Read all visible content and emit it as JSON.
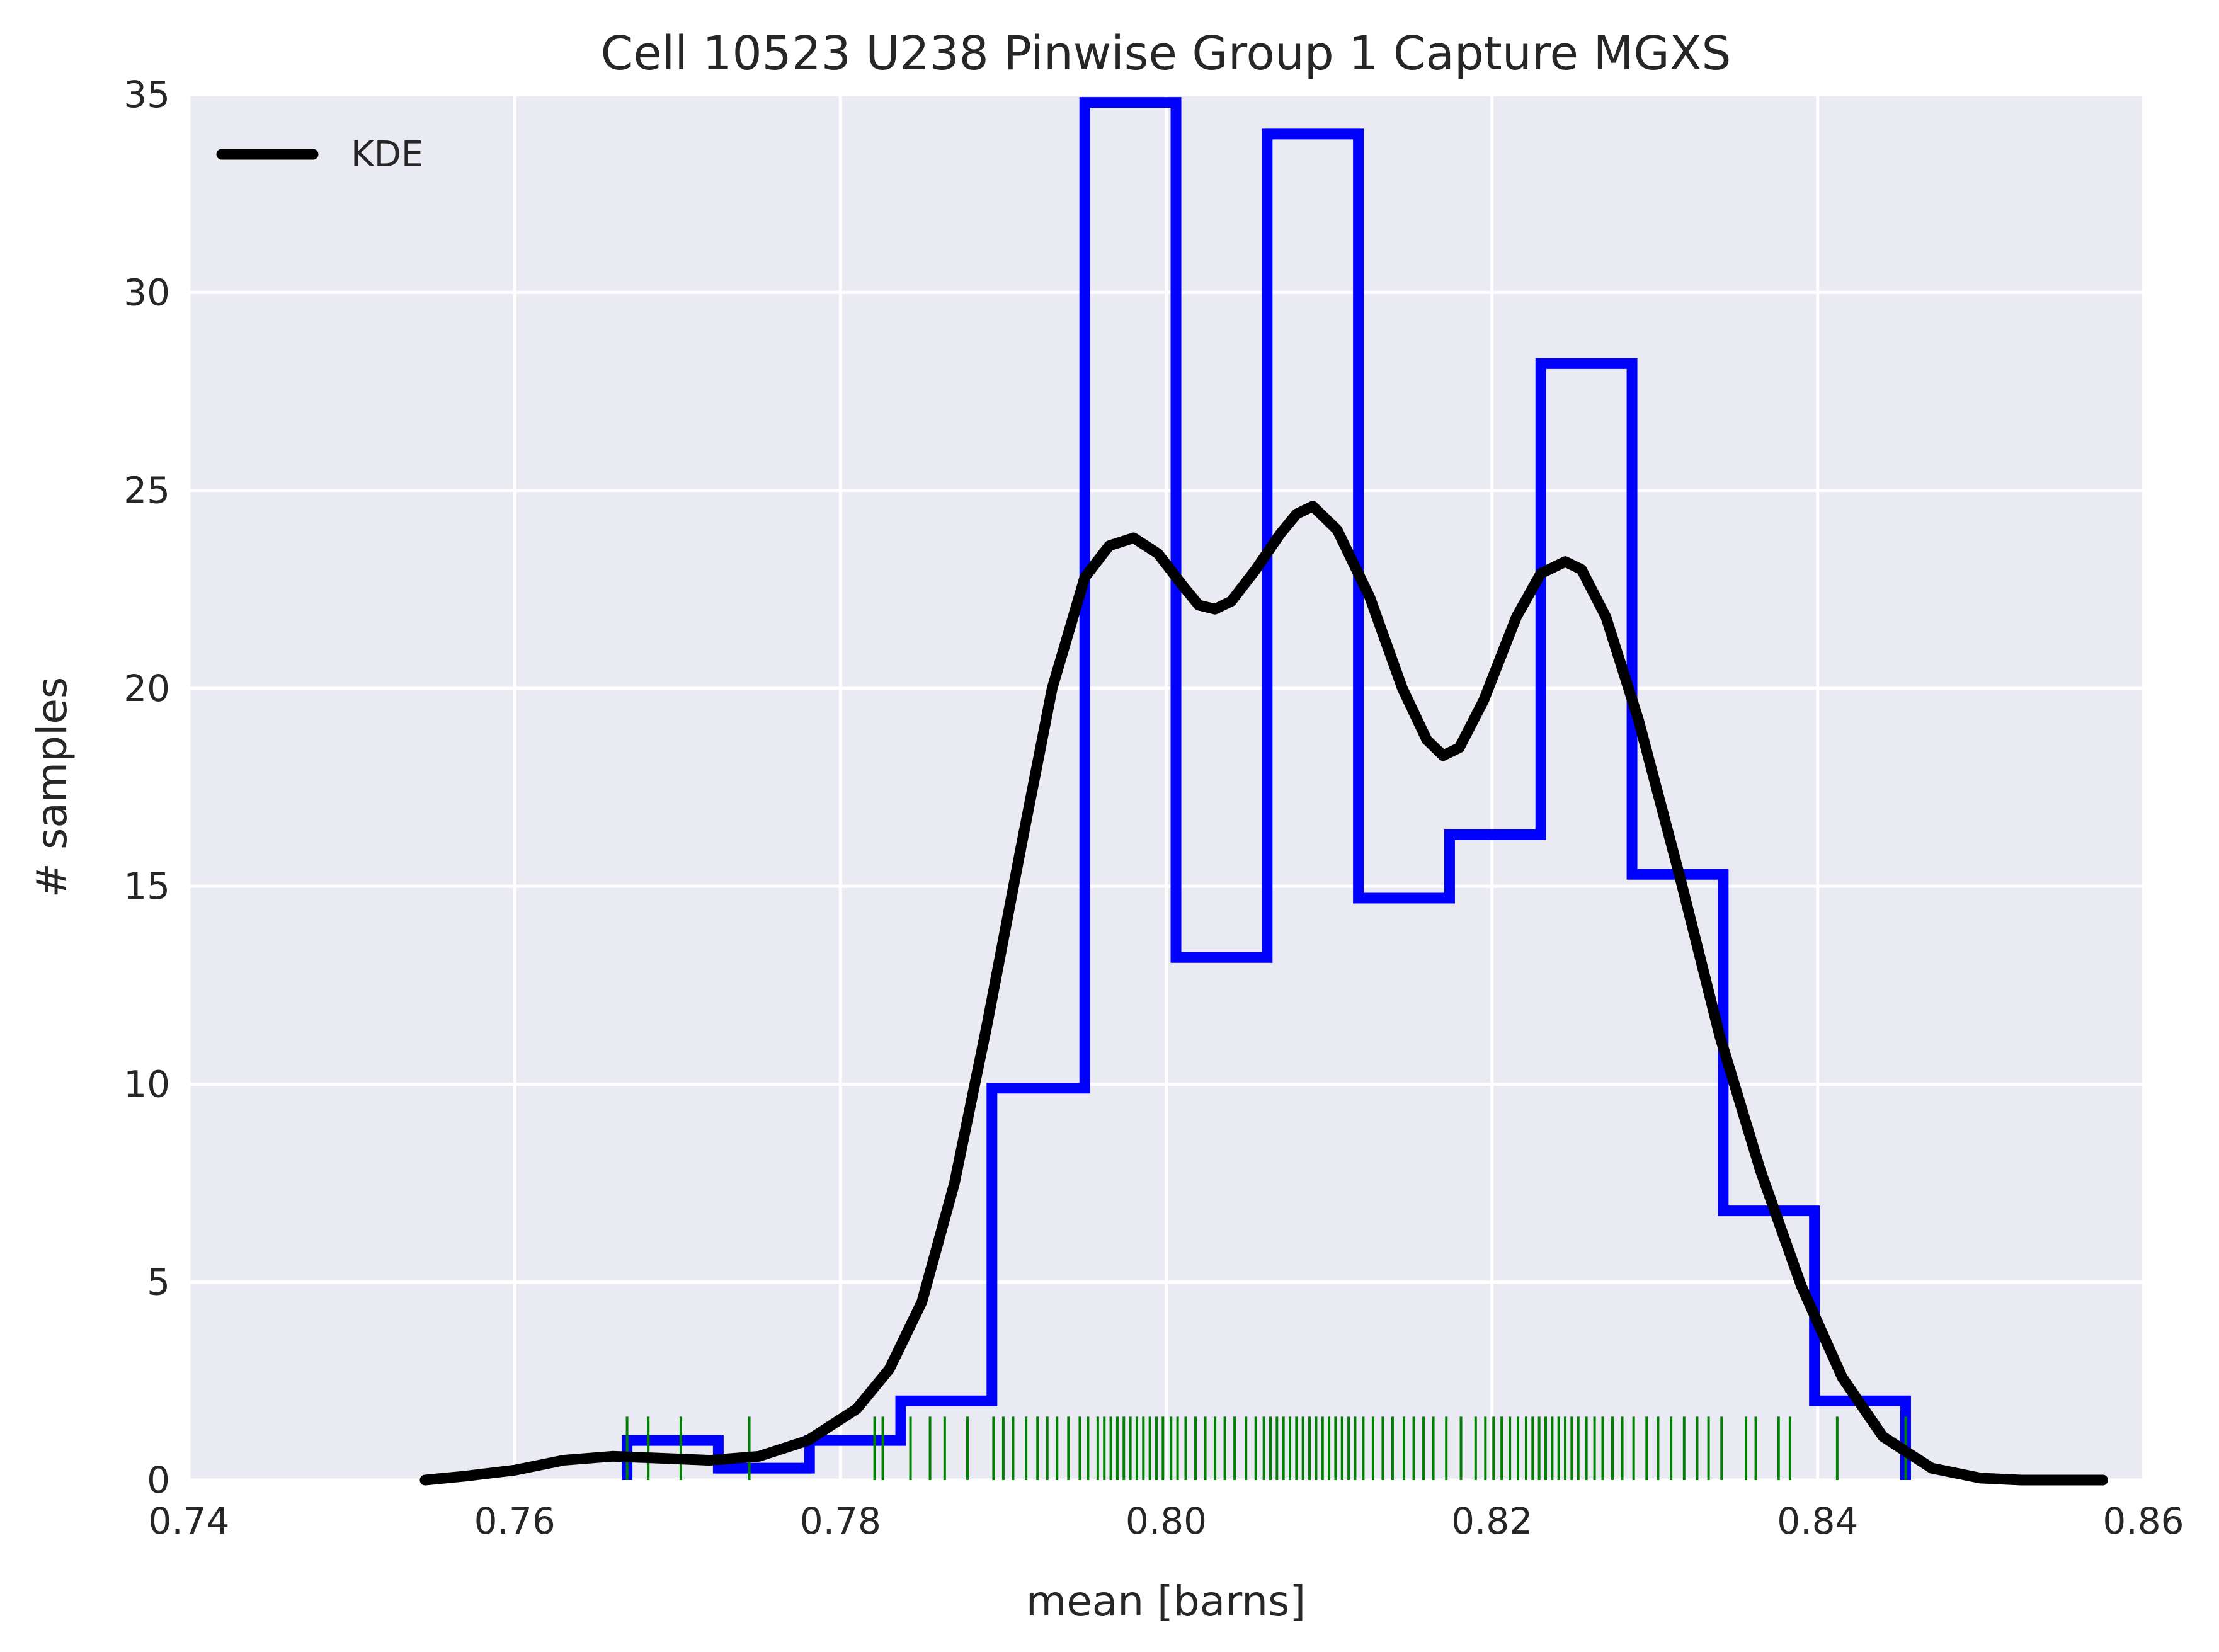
{
  "chart_data": {
    "type": "histogram",
    "title": "Cell 10523 U238 Pinwise Group 1 Capture MGXS",
    "xlabel": "mean [barns]",
    "ylabel": "# samples",
    "xlim": [
      0.74,
      0.86
    ],
    "ylim": [
      0,
      35
    ],
    "x_ticks": [
      0.74,
      0.76,
      0.78,
      0.8,
      0.82,
      0.84,
      0.86
    ],
    "x_tick_labels": [
      "0.74",
      "0.76",
      "0.78",
      "0.80",
      "0.82",
      "0.84",
      "0.86"
    ],
    "y_ticks": [
      0,
      5,
      10,
      15,
      20,
      25,
      30,
      35
    ],
    "y_tick_labels": [
      "0",
      "5",
      "10",
      "15",
      "20",
      "25",
      "30",
      "35"
    ],
    "grid": true,
    "legend": {
      "placement": "top-left",
      "entries": [
        "KDE"
      ]
    },
    "histogram": {
      "bin_edges": [
        0.7669,
        0.7725,
        0.7781,
        0.7837,
        0.7893,
        0.795,
        0.8006,
        0.8062,
        0.8118,
        0.8174,
        0.823,
        0.8286,
        0.8342,
        0.8398,
        0.8454
      ],
      "counts": [
        1.0,
        0.3,
        1.0,
        2.0,
        9.9,
        34.8,
        13.2,
        34.0,
        14.7,
        16.3,
        28.2,
        15.3,
        6.8,
        2.0
      ]
    },
    "kde": {
      "name": "KDE",
      "x": [
        0.7545,
        0.757,
        0.76,
        0.763,
        0.766,
        0.769,
        0.772,
        0.775,
        0.778,
        0.781,
        0.783,
        0.785,
        0.787,
        0.789,
        0.791,
        0.793,
        0.795,
        0.7965,
        0.798,
        0.7995,
        0.801,
        0.802,
        0.803,
        0.804,
        0.8055,
        0.807,
        0.808,
        0.809,
        0.8105,
        0.8125,
        0.8145,
        0.816,
        0.817,
        0.818,
        0.8195,
        0.8215,
        0.823,
        0.8245,
        0.8255,
        0.827,
        0.829,
        0.8315,
        0.834,
        0.8365,
        0.839,
        0.8415,
        0.844,
        0.847,
        0.85,
        0.8525,
        0.855,
        0.8575
      ],
      "y": [
        0.0,
        0.1,
        0.25,
        0.5,
        0.6,
        0.55,
        0.5,
        0.6,
        1.0,
        1.8,
        2.8,
        4.5,
        7.5,
        11.5,
        15.8,
        20.0,
        22.8,
        23.6,
        23.8,
        23.4,
        22.6,
        22.1,
        22.0,
        22.2,
        23.0,
        23.9,
        24.4,
        24.6,
        24.0,
        22.3,
        20.0,
        18.7,
        18.3,
        18.5,
        19.7,
        21.8,
        22.9,
        23.2,
        23.0,
        21.8,
        19.2,
        15.3,
        11.2,
        7.8,
        4.9,
        2.6,
        1.1,
        0.3,
        0.05,
        0.0,
        0.0,
        0.0
      ]
    },
    "rug": [
      0.7669,
      0.7682,
      0.7702,
      0.7744,
      0.7821,
      0.7826,
      0.7843,
      0.7855,
      0.7864,
      0.7878,
      0.7894,
      0.79,
      0.7906,
      0.7914,
      0.7921,
      0.7927,
      0.7933,
      0.794,
      0.7947,
      0.7952,
      0.7958,
      0.7962,
      0.7966,
      0.797,
      0.7974,
      0.7978,
      0.7982,
      0.7986,
      0.799,
      0.7994,
      0.7998,
      0.8003,
      0.8007,
      0.8012,
      0.8018,
      0.8024,
      0.803,
      0.8036,
      0.8042,
      0.8049,
      0.8055,
      0.806,
      0.8064,
      0.8068,
      0.8072,
      0.8076,
      0.808,
      0.8084,
      0.8088,
      0.8092,
      0.8096,
      0.81,
      0.8104,
      0.8108,
      0.8112,
      0.8116,
      0.8121,
      0.8127,
      0.8133,
      0.8139,
      0.8146,
      0.8152,
      0.8158,
      0.8164,
      0.8172,
      0.8181,
      0.819,
      0.8196,
      0.8201,
      0.8206,
      0.8211,
      0.8216,
      0.8221,
      0.8225,
      0.8229,
      0.8233,
      0.8237,
      0.8241,
      0.8245,
      0.8249,
      0.8253,
      0.8258,
      0.8263,
      0.8268,
      0.8274,
      0.828,
      0.8287,
      0.8295,
      0.8302,
      0.831,
      0.8318,
      0.8326,
      0.8333,
      0.8341,
      0.8356,
      0.8362,
      0.8376,
      0.8383,
      0.8412,
      0.8454
    ]
  },
  "style": {
    "background": "#ffffff",
    "plot_background": "#eaeaf2",
    "grid_color": "#ffffff",
    "histogram_color": "#0000ff",
    "kde_color": "#000000",
    "rug_color": "#008000"
  }
}
